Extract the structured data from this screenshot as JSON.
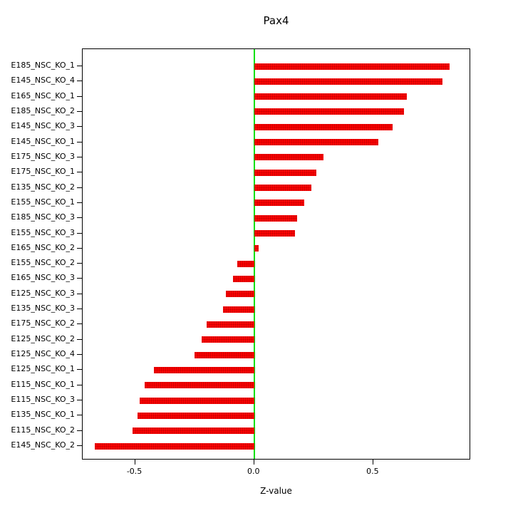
{
  "title": "Pax4",
  "xlabel": "Z-value",
  "chart_data": {
    "type": "bar",
    "orientation": "horizontal",
    "title": "Pax4",
    "xlabel": "Z-value",
    "ylabel": "",
    "xlim": [
      -0.72,
      0.91
    ],
    "x_ticks": [
      -0.5,
      0.0,
      0.5
    ],
    "x_tick_labels": [
      "-0.5",
      "0.0",
      "0.5"
    ],
    "grid": false,
    "legend": false,
    "bar_color": "#ff0000",
    "zero_line_color": "#00e000",
    "categories": [
      "E185_NSC_KO_1",
      "E145_NSC_KO_4",
      "E165_NSC_KO_1",
      "E185_NSC_KO_2",
      "E145_NSC_KO_3",
      "E145_NSC_KO_1",
      "E175_NSC_KO_3",
      "E175_NSC_KO_1",
      "E135_NSC_KO_2",
      "E155_NSC_KO_1",
      "E185_NSC_KO_3",
      "E155_NSC_KO_3",
      "E165_NSC_KO_2",
      "E155_NSC_KO_2",
      "E165_NSC_KO_3",
      "E125_NSC_KO_3",
      "E135_NSC_KO_3",
      "E175_NSC_KO_2",
      "E125_NSC_KO_2",
      "E125_NSC_KO_4",
      "E125_NSC_KO_1",
      "E115_NSC_KO_1",
      "E115_NSC_KO_3",
      "E135_NSC_KO_1",
      "E115_NSC_KO_2",
      "E145_NSC_KO_2"
    ],
    "values": [
      0.82,
      0.79,
      0.64,
      0.63,
      0.58,
      0.52,
      0.29,
      0.26,
      0.24,
      0.21,
      0.18,
      0.17,
      0.02,
      -0.07,
      -0.09,
      -0.12,
      -0.13,
      -0.2,
      -0.22,
      -0.25,
      -0.42,
      -0.46,
      -0.48,
      -0.49,
      -0.51,
      -0.67
    ]
  }
}
